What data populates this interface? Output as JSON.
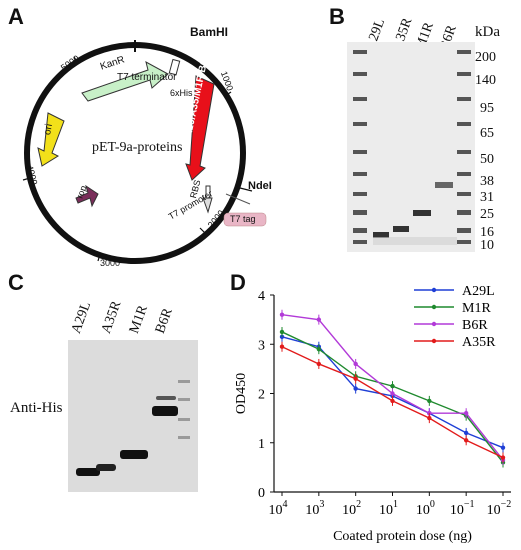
{
  "panels": {
    "A": {
      "letter": "A",
      "plasmid_name": "pET-9a-proteins",
      "sites": {
        "bamhi": "BamHI",
        "ndei": "NdeI"
      },
      "features": {
        "kanr": "KanR",
        "ori": "ori",
        "rop": "rop",
        "t7_terminator": "T7 terminator",
        "his": "6xHis",
        "insert": "A29/A35/M1R/B6R",
        "rbs": "RBS",
        "t7_promoter": "T7 promoter",
        "t7_tag": "T7 tag"
      },
      "positions": [
        "1000",
        "2000",
        "3000",
        "4000",
        "5000"
      ],
      "colors": {
        "kanr": "#c8f0c8",
        "ori": "#f2e01a",
        "rop": "#7a2e5a",
        "insert": "#e8101a",
        "t7_tag": "#e9b6c6"
      }
    },
    "B": {
      "letter": "B",
      "lanes": [
        "A29L",
        "A35R",
        "M1R",
        "B6R"
      ],
      "unit": "kDa",
      "markers": [
        "200",
        "140",
        "95",
        "65",
        "50",
        "38",
        "31",
        "25",
        "16",
        "10"
      ]
    },
    "C": {
      "letter": "C",
      "lanes": [
        "A29L",
        "A35R",
        "M1R",
        "B6R"
      ],
      "row_label": "Anti-His"
    },
    "D": {
      "letter": "D",
      "chart_data": {
        "type": "line",
        "xlabel": "Coated protein dose (ng)",
        "ylabel": "OD450",
        "x_ticks": [
          "10^4",
          "10^3",
          "10^2",
          "10^1",
          "10^0",
          "10^-1",
          "10^-2"
        ],
        "x": [
          10000,
          1000,
          100,
          10,
          1,
          0.1,
          0.01
        ],
        "ylim": [
          0,
          4
        ],
        "y_ticks": [
          0,
          1,
          2,
          3,
          4
        ],
        "legend_position": "top-right",
        "series": [
          {
            "name": "A29L",
            "color": "#1f3fd6",
            "values": [
              3.15,
              2.95,
              2.1,
              1.95,
              1.6,
              1.2,
              0.9
            ]
          },
          {
            "name": "M1R",
            "color": "#1f8a2e",
            "values": [
              3.25,
              2.9,
              2.35,
              2.15,
              1.85,
              1.55,
              0.6
            ]
          },
          {
            "name": "B6R",
            "color": "#b23ad8",
            "values": [
              3.6,
              3.5,
              2.6,
              2.0,
              1.6,
              1.6,
              0.65
            ]
          },
          {
            "name": "A35R",
            "color": "#e21b1b",
            "values": [
              2.95,
              2.6,
              2.3,
              1.85,
              1.5,
              1.05,
              0.7
            ]
          }
        ]
      }
    }
  }
}
